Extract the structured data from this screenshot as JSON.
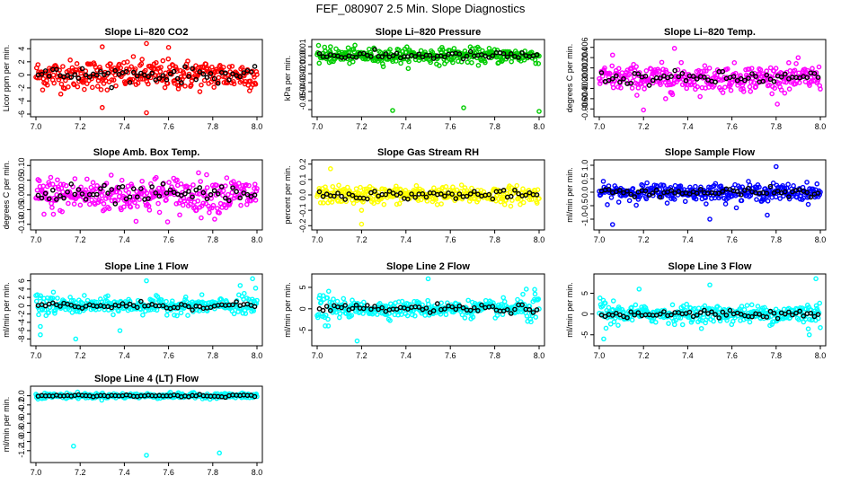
{
  "figure_title": "FEF_080907  2.5 Min. Slope Diagnostics",
  "chart_data": [
    {
      "type": "scatter",
      "title": "Slope Li–820 CO2",
      "ylabel": "Licor ppm per min.",
      "xlim": [
        7.0,
        8.0
      ],
      "ylim": [
        -6,
        5
      ],
      "xticks": [
        "7.0",
        "7.2",
        "7.4",
        "7.6",
        "7.8",
        "8.0"
      ],
      "yticks": [
        -6,
        -4,
        -2,
        0,
        2,
        4
      ],
      "ytick_labels": [
        "-6",
        "-4",
        "-2",
        "0",
        "2",
        "4"
      ],
      "color": "#ff0000",
      "spread": 1.6,
      "outliers": [
        [
          7.3,
          -5
        ],
        [
          7.5,
          -5.8
        ],
        [
          7.5,
          4.8
        ],
        [
          7.3,
          4.3
        ],
        [
          7.6,
          4.2
        ]
      ]
    },
    {
      "type": "scatter",
      "title": "Slope Li–820 Pressure",
      "ylabel": "kPa per min.",
      "xlim": [
        7.0,
        8.0
      ],
      "ylim": [
        -0.065,
        0.015
      ],
      "xticks": [
        "7.0",
        "7.2",
        "7.4",
        "7.6",
        "7.8",
        "8.0"
      ],
      "yticks": [
        -0.06,
        -0.05,
        -0.04,
        -0.03,
        -0.02,
        -0.01,
        0,
        0.01
      ],
      "ytick_labels": [
        "",
        "-0.05",
        "-0.04",
        "-0.03",
        "-0.02",
        "-0.01",
        "0.00",
        "0.01"
      ],
      "color": "#00cc00",
      "spread": 0.006,
      "outliers": [
        [
          7.34,
          -0.061
        ],
        [
          7.66,
          -0.058
        ],
        [
          8.0,
          -0.062
        ],
        [
          7.06,
          0.01
        ]
      ]
    },
    {
      "type": "scatter",
      "title": "Slope Li–820 Temp.",
      "ylabel": "degrees C per min.",
      "xlim": [
        7.0,
        8.0
      ],
      "ylim": [
        -0.007,
        0.007
      ],
      "xticks": [
        "7.0",
        "7.2",
        "7.4",
        "7.6",
        "7.8",
        "8.0"
      ],
      "yticks": [
        -0.006,
        -0.004,
        -0.002,
        0,
        0.002,
        0.004,
        0.006
      ],
      "ytick_labels": [
        "-0.006",
        "-0.004",
        "-0.002",
        "0.000",
        "0.002",
        "0.004",
        "0.006"
      ],
      "color": "#ff00ff",
      "spread": 0.0018,
      "outliers": [
        [
          7.34,
          0.0058
        ],
        [
          7.2,
          -0.0062
        ],
        [
          7.06,
          0.0045
        ],
        [
          7.3,
          -0.004
        ]
      ]
    },
    {
      "type": "scatter",
      "title": "Slope Amb. Box Temp.",
      "ylabel": "degrees C per min.",
      "xlim": [
        7.0,
        8.0
      ],
      "ylim": [
        -0.11,
        0.11
      ],
      "xticks": [
        "7.0",
        "7.2",
        "7.4",
        "7.6",
        "7.8",
        "8.0"
      ],
      "yticks": [
        -0.1,
        -0.05,
        0,
        0.05,
        0.1
      ],
      "ytick_labels": [
        "-0.10",
        "-0.05",
        "0.00",
        "0.05",
        "0.10"
      ],
      "color": "#ff00ff",
      "spread": 0.045,
      "outliers": []
    },
    {
      "type": "scatter",
      "title": "Slope Gas Stream RH",
      "ylabel": "percent per min.",
      "xlim": [
        7.0,
        8.0
      ],
      "ylim": [
        -0.21,
        0.21
      ],
      "xticks": [
        "7.0",
        "7.2",
        "7.4",
        "7.6",
        "7.8",
        "8.0"
      ],
      "yticks": [
        -0.2,
        -0.1,
        0,
        0.1,
        0.2
      ],
      "ytick_labels": [
        "-0.2",
        "-0.1",
        "0.0",
        "0.1",
        "0.2"
      ],
      "color": "#ffff00",
      "spread": 0.04,
      "outliers": [
        [
          7.2,
          -0.19
        ],
        [
          7.06,
          0.17
        ],
        [
          7.2,
          -0.1
        ]
      ]
    },
    {
      "type": "scatter",
      "title": "Slope Sample Flow",
      "ylabel": "ml/min per min.",
      "xlim": [
        7.0,
        8.0
      ],
      "ylim": [
        -1.3,
        1.1
      ],
      "xticks": [
        "7.0",
        "7.2",
        "7.4",
        "7.6",
        "7.8",
        "8.0"
      ],
      "yticks": [
        -1.0,
        -0.5,
        0,
        0.5,
        1.0
      ],
      "ytick_labels": [
        "-1.0",
        "-0.5",
        "0.0",
        "0.5",
        "1.0"
      ],
      "color": "#0000ff",
      "spread": 0.22,
      "outliers": [
        [
          7.06,
          -1.2
        ],
        [
          7.5,
          -1.0
        ],
        [
          7.8,
          0.95
        ],
        [
          7.76,
          -0.85
        ]
      ]
    },
    {
      "type": "scatter",
      "title": "Slope Line 1 Flow",
      "ylabel": "ml/min per min.",
      "xlim": [
        7.0,
        8.0
      ],
      "ylim": [
        -9,
        7
      ],
      "xticks": [
        "7.0",
        "7.2",
        "7.4",
        "7.6",
        "7.8",
        "8.0"
      ],
      "yticks": [
        -8,
        -6,
        -4,
        -2,
        0,
        2,
        4,
        6
      ],
      "ytick_labels": [
        "-8",
        "-6",
        "-4",
        "-2",
        "0",
        "2",
        "4",
        "6"
      ],
      "color": "#00ffff",
      "spread": 1.3,
      "outliers": [
        [
          7.02,
          -7
        ],
        [
          7.18,
          -8
        ],
        [
          7.38,
          -6
        ],
        [
          7.98,
          6.5
        ],
        [
          7.5,
          6
        ],
        [
          7.02,
          -5
        ]
      ]
    },
    {
      "type": "scatter",
      "title": "Slope Line 2 Flow",
      "ylabel": "ml/min per min.",
      "xlim": [
        7.0,
        8.0
      ],
      "ylim": [
        -8,
        7.5
      ],
      "xticks": [
        "7.0",
        "7.2",
        "7.4",
        "7.6",
        "7.8",
        "8.0"
      ],
      "yticks": [
        -5,
        0,
        5
      ],
      "ytick_labels": [
        "-5",
        "0",
        "5"
      ],
      "color": "#00ffff",
      "spread": 1.3,
      "outliers": [
        [
          7.18,
          -7.5
        ],
        [
          7.5,
          7
        ],
        [
          7.98,
          4.5
        ],
        [
          7.05,
          -4
        ]
      ]
    },
    {
      "type": "scatter",
      "title": "Slope Line 3 Flow",
      "ylabel": "ml/min per min.",
      "xlim": [
        7.0,
        8.0
      ],
      "ylim": [
        -7,
        9
      ],
      "xticks": [
        "7.0",
        "7.2",
        "7.4",
        "7.6",
        "7.8",
        "8.0"
      ],
      "yticks": [
        -5,
        0,
        5
      ],
      "ytick_labels": [
        "-5",
        "0",
        "5"
      ],
      "color": "#00ffff",
      "spread": 1.5,
      "outliers": [
        [
          7.02,
          -6
        ],
        [
          7.18,
          6
        ],
        [
          7.98,
          8.5
        ],
        [
          7.95,
          -5
        ],
        [
          7.5,
          7
        ]
      ]
    },
    {
      "type": "scatter",
      "title": "Slope Line 4 (LT) Flow",
      "ylabel": "ml/min per min.",
      "xlim": [
        7.0,
        8.0
      ],
      "ylim": [
        -1.4,
        0.15
      ],
      "xticks": [
        "7.0",
        "7.2",
        "7.4",
        "7.6",
        "7.8",
        "8.0"
      ],
      "yticks": [
        -1.2,
        -1.0,
        -0.8,
        -0.6,
        -0.4,
        -0.2,
        0
      ],
      "ytick_labels": [
        "-1.2",
        "-1.0",
        "-0.8",
        "-0.6",
        "-0.4",
        "-0.2",
        "0.0"
      ],
      "color": "#00ffff",
      "spread": 0.04,
      "outliers": [
        [
          7.17,
          -1.1
        ],
        [
          7.5,
          -1.3
        ],
        [
          7.83,
          -1.25
        ]
      ]
    }
  ]
}
